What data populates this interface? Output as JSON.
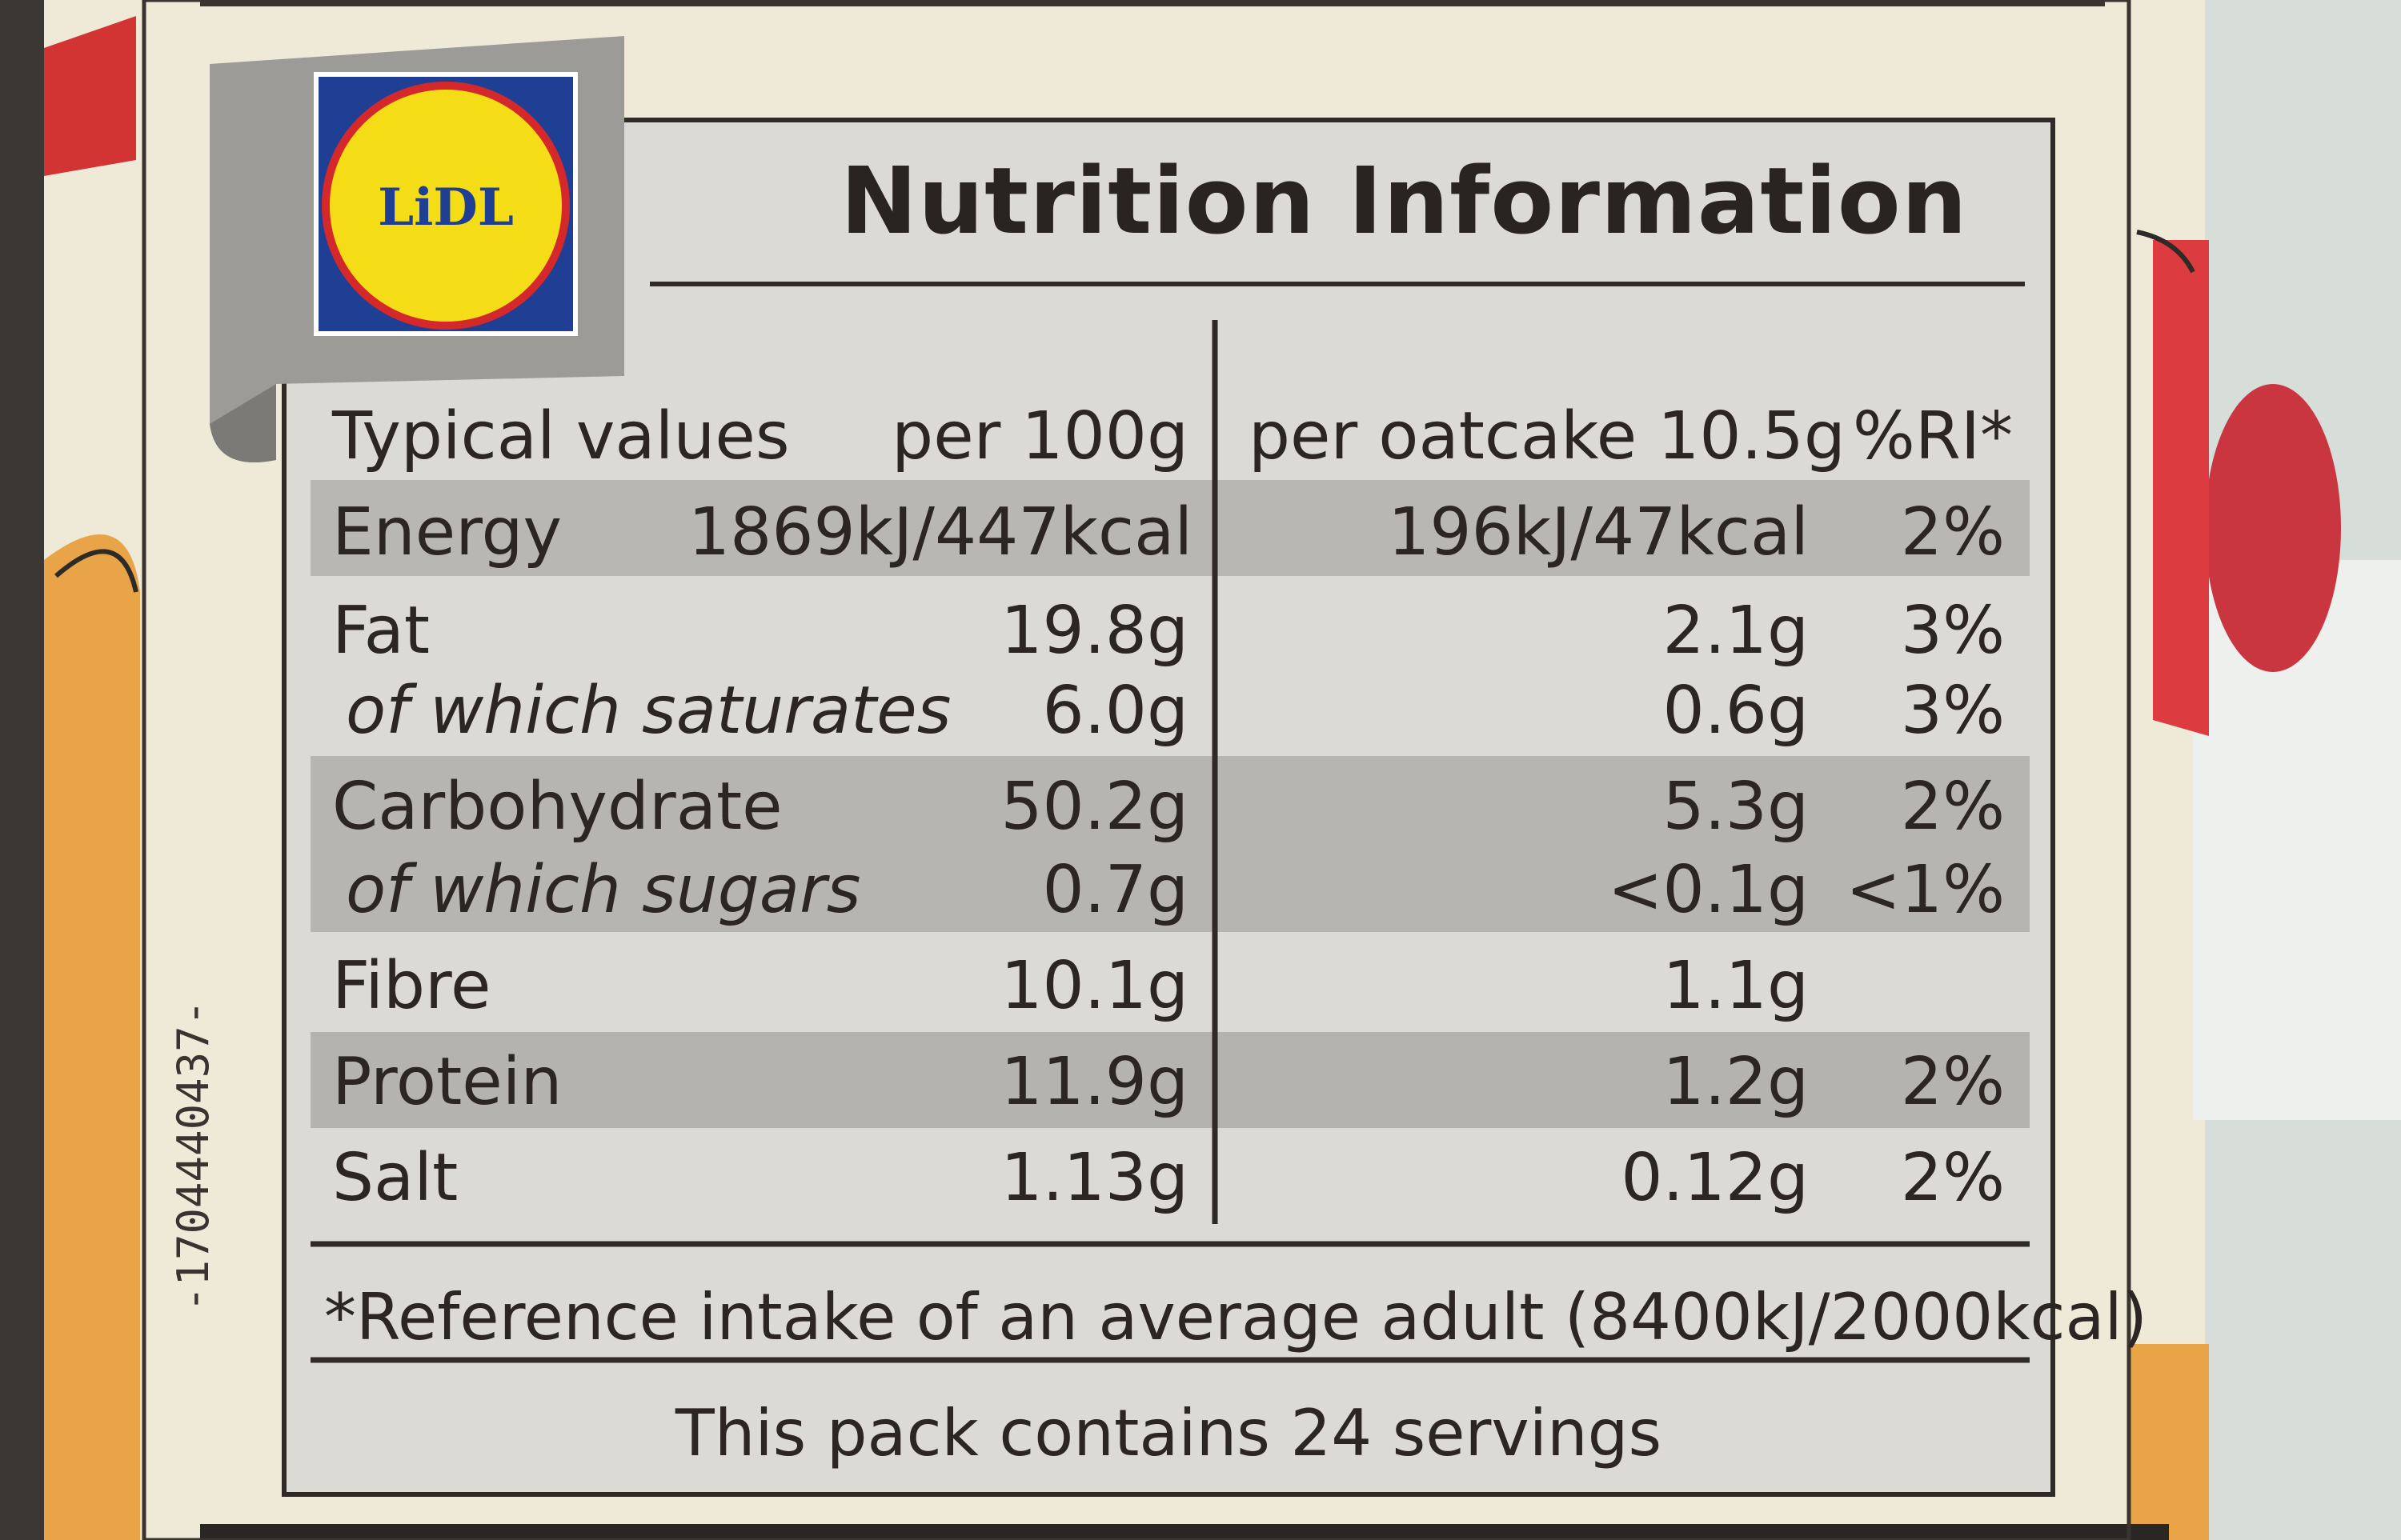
{
  "colors": {
    "panel": "#dcdad5",
    "panel_shade": "#b7b5b1",
    "ink": "#2b2623",
    "lidl_blue": "#1f3f95",
    "lidl_yellow": "#f4dd16",
    "lidl_red": "#d5282b"
  },
  "logo": {
    "text": "LiDL",
    "icon": "lidl-logo-icon"
  },
  "title": "Nutrition Information",
  "table": {
    "headers": {
      "label": "Typical values",
      "per100": "per 100g",
      "perServing": "per oatcake 10.5g",
      "ri": "%RI*"
    },
    "rows": [
      {
        "label": "Energy",
        "per100": "1869kJ/447kcal",
        "perServing": "196kJ/47kcal",
        "ri": "2%",
        "italic": false,
        "shaded": true
      },
      {
        "label": "Fat",
        "per100": "19.8g",
        "perServing": "2.1g",
        "ri": "3%",
        "italic": false,
        "shaded": false
      },
      {
        "label": "of which saturates",
        "per100": "6.0g",
        "perServing": "0.6g",
        "ri": "3%",
        "italic": true,
        "shaded": false
      },
      {
        "label": "Carbohydrate",
        "per100": "50.2g",
        "perServing": "5.3g",
        "ri": "2%",
        "italic": false,
        "shaded": true
      },
      {
        "label": "of which sugars",
        "per100": "0.7g",
        "perServing": "<0.1g",
        "ri": "<1%",
        "italic": true,
        "shaded": true
      },
      {
        "label": "Fibre",
        "per100": "10.1g",
        "perServing": "1.1g",
        "ri": "",
        "italic": false,
        "shaded": false
      },
      {
        "label": "Protein",
        "per100": "11.9g",
        "perServing": "1.2g",
        "ri": "2%",
        "italic": false,
        "shaded": true
      },
      {
        "label": "Salt",
        "per100": "1.13g",
        "perServing": "0.12g",
        "ri": "2%",
        "italic": false,
        "shaded": false
      }
    ]
  },
  "footnote": "*Reference intake of an average adult (8400kJ/2000kcal)",
  "servings": "This pack contains 24 servings",
  "batch_code": "-1704440437-"
}
